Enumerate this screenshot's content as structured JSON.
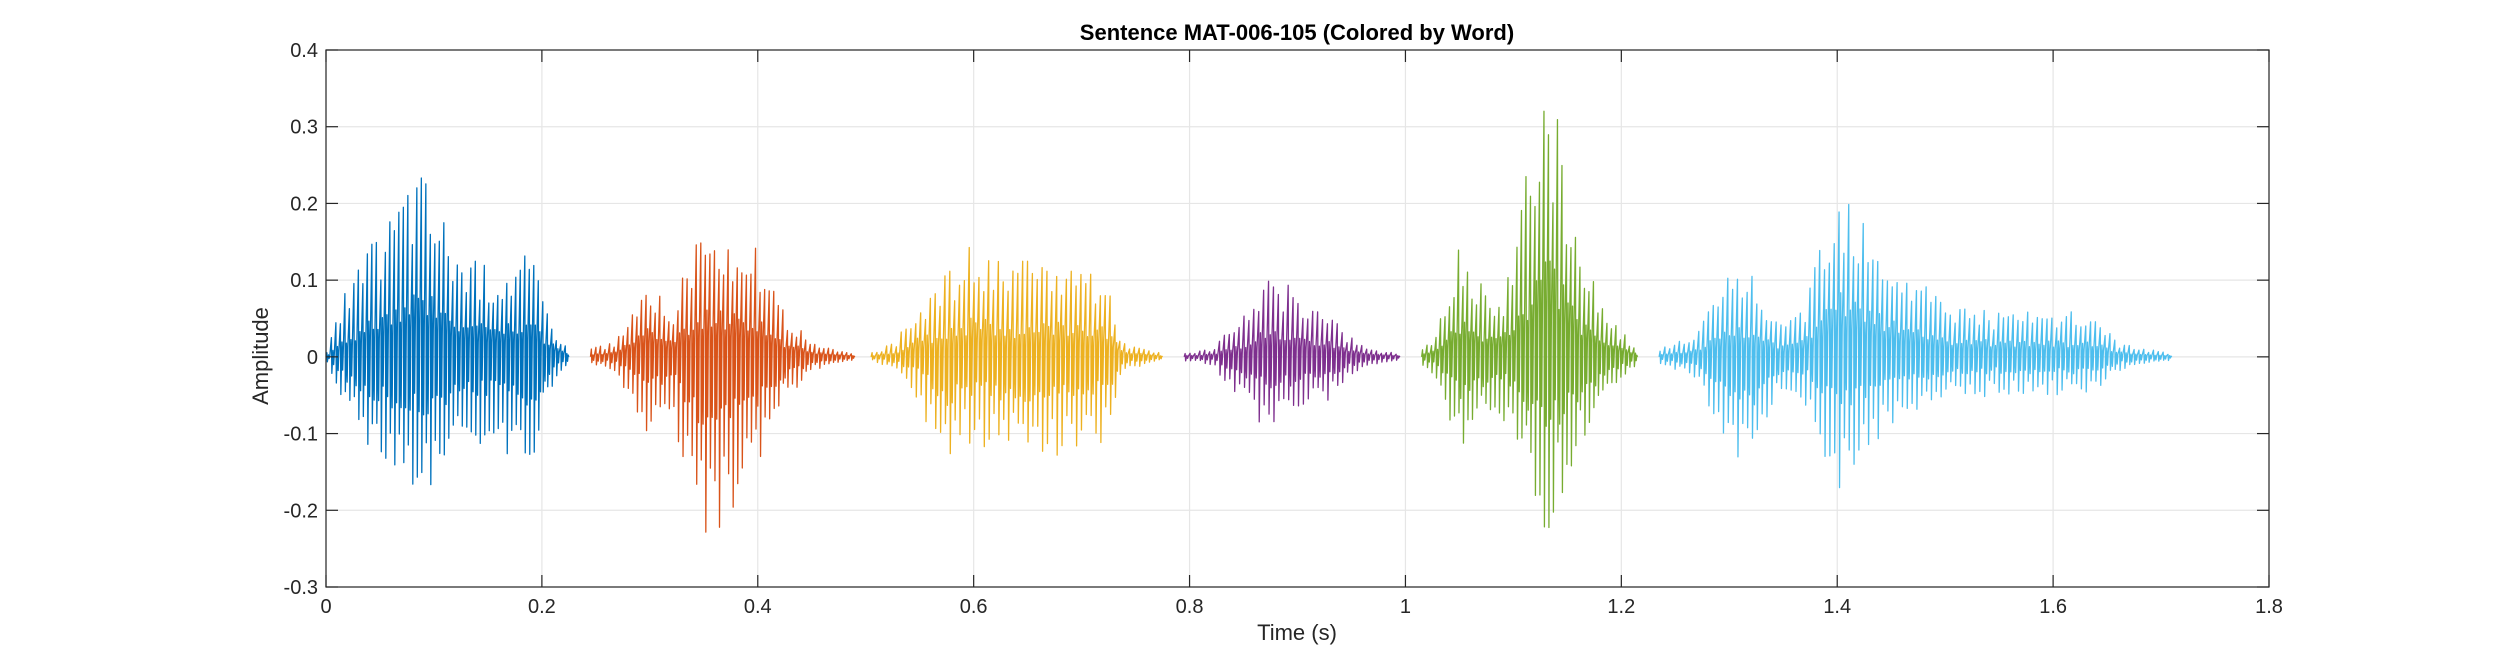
{
  "chart_data": {
    "type": "line",
    "title": "Sentence MAT-006-105 (Colored by Word)",
    "xlabel": "Time (s)",
    "ylabel": "Amplitude",
    "xlim": [
      0,
      1.8
    ],
    "ylim": [
      -0.3,
      0.4
    ],
    "grid": true,
    "legend": "none",
    "x_ticks": [
      0,
      0.2,
      0.4,
      0.6,
      0.8,
      1,
      1.2,
      1.4,
      1.6,
      1.8
    ],
    "x_tick_labels": [
      "0",
      "0.2",
      "0.4",
      "0.6",
      "0.8",
      "1",
      "1.2",
      "1.4",
      "1.6",
      "1.8"
    ],
    "y_ticks": [
      -0.3,
      -0.2,
      -0.1,
      0,
      0.1,
      0.2,
      0.3,
      0.4
    ],
    "y_tick_labels": [
      "-0.3",
      "-0.2",
      "-0.1",
      "0",
      "0.1",
      "0.2",
      "0.3",
      "0.4"
    ],
    "series": [
      {
        "color": "#0072BD",
        "t_start": 0.0,
        "t_end": 0.225,
        "cycle_s": 0.0042,
        "envelope_t": [
          0.0,
          0.02,
          0.04,
          0.06,
          0.08,
          0.09,
          0.11,
          0.13,
          0.16,
          0.19,
          0.21,
          0.225
        ],
        "envelope_up": [
          0.0,
          0.09,
          0.14,
          0.19,
          0.25,
          0.25,
          0.19,
          0.13,
          0.12,
          0.14,
          0.05,
          0.01
        ],
        "envelope_dn": [
          0.0,
          -0.08,
          -0.12,
          -0.16,
          -0.18,
          -0.18,
          -0.15,
          -0.11,
          -0.12,
          -0.15,
          -0.04,
          -0.01
        ]
      },
      {
        "color": "#D95319",
        "t_start": 0.245,
        "t_end": 0.49,
        "cycle_s": 0.0042,
        "envelope_t": [
          0.245,
          0.27,
          0.3,
          0.32,
          0.35,
          0.37,
          0.4,
          0.42,
          0.45,
          0.47,
          0.49
        ],
        "envelope_up": [
          0.01,
          0.02,
          0.12,
          0.06,
          0.19,
          0.17,
          0.15,
          0.07,
          0.02,
          0.01,
          0.005
        ],
        "envelope_dn": [
          -0.01,
          -0.02,
          -0.11,
          -0.07,
          -0.25,
          -0.22,
          -0.15,
          -0.07,
          -0.02,
          -0.01,
          -0.005
        ]
      },
      {
        "color": "#EDB120",
        "t_start": 0.505,
        "t_end": 0.775,
        "cycle_s": 0.0045,
        "envelope_t": [
          0.505,
          0.53,
          0.55,
          0.57,
          0.6,
          0.63,
          0.66,
          0.69,
          0.72,
          0.74,
          0.76,
          0.775
        ],
        "envelope_up": [
          0.005,
          0.02,
          0.08,
          0.1,
          0.15,
          0.12,
          0.13,
          0.13,
          0.12,
          0.02,
          0.01,
          0.005
        ],
        "envelope_dn": [
          -0.005,
          -0.02,
          -0.06,
          -0.15,
          -0.11,
          -0.13,
          -0.13,
          -0.13,
          -0.12,
          -0.02,
          -0.01,
          -0.005
        ]
      },
      {
        "color": "#7E2F8E",
        "t_start": 0.795,
        "t_end": 0.995,
        "cycle_s": 0.0045,
        "envelope_t": [
          0.795,
          0.82,
          0.85,
          0.87,
          0.89,
          0.92,
          0.95,
          0.97,
          0.995
        ],
        "envelope_up": [
          0.005,
          0.01,
          0.05,
          0.11,
          0.1,
          0.07,
          0.03,
          0.01,
          0.005
        ],
        "envelope_dn": [
          -0.005,
          -0.01,
          -0.06,
          -0.1,
          -0.09,
          -0.07,
          -0.03,
          -0.01,
          -0.005
        ]
      },
      {
        "color": "#77AC30",
        "t_start": 1.015,
        "t_end": 1.215,
        "cycle_s": 0.0042,
        "envelope_t": [
          1.015,
          1.03,
          1.05,
          1.07,
          1.09,
          1.11,
          1.125,
          1.14,
          1.16,
          1.19,
          1.215
        ],
        "envelope_up": [
          0.01,
          0.03,
          0.15,
          0.1,
          0.08,
          0.21,
          0.38,
          0.34,
          0.15,
          0.06,
          0.01
        ],
        "envelope_dn": [
          -0.01,
          -0.03,
          -0.13,
          -0.09,
          -0.08,
          -0.14,
          -0.24,
          -0.21,
          -0.13,
          -0.05,
          -0.01
        ]
      },
      {
        "color": "#4DBEEE",
        "t_start": 1.235,
        "t_end": 1.71,
        "cycle_s": 0.0045,
        "envelope_t": [
          1.235,
          1.27,
          1.3,
          1.32,
          1.35,
          1.37,
          1.4,
          1.42,
          1.45,
          1.5,
          1.55,
          1.6,
          1.64,
          1.66,
          1.69,
          1.71
        ],
        "envelope_up": [
          0.01,
          0.03,
          0.11,
          0.12,
          0.04,
          0.07,
          0.25,
          0.22,
          0.14,
          0.08,
          0.06,
          0.06,
          0.06,
          0.02,
          0.01,
          0.005
        ],
        "envelope_dn": [
          -0.01,
          -0.03,
          -0.12,
          -0.16,
          -0.04,
          -0.06,
          -0.18,
          -0.15,
          -0.09,
          -0.06,
          -0.05,
          -0.05,
          -0.05,
          -0.02,
          -0.01,
          -0.005
        ]
      }
    ]
  }
}
